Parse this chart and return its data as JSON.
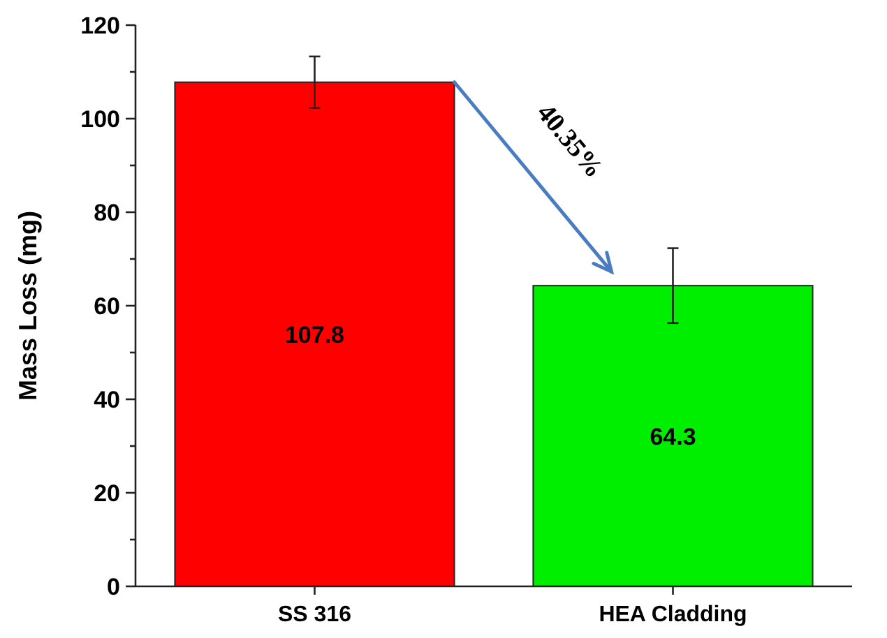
{
  "chart_data": {
    "type": "bar",
    "ylabel": "Mass Loss (mg)",
    "categories": [
      "SS 316",
      "HEA Cladding"
    ],
    "values": [
      107.8,
      64.3
    ],
    "colors": [
      "#ff0000",
      "#00ee00"
    ],
    "errors": [
      5.5,
      8
    ],
    "ylim": [
      0,
      120
    ],
    "yticks": [
      0,
      20,
      40,
      60,
      80,
      100,
      120
    ],
    "data_labels": true,
    "grid": false,
    "annotations": [
      "40.35%"
    ]
  }
}
